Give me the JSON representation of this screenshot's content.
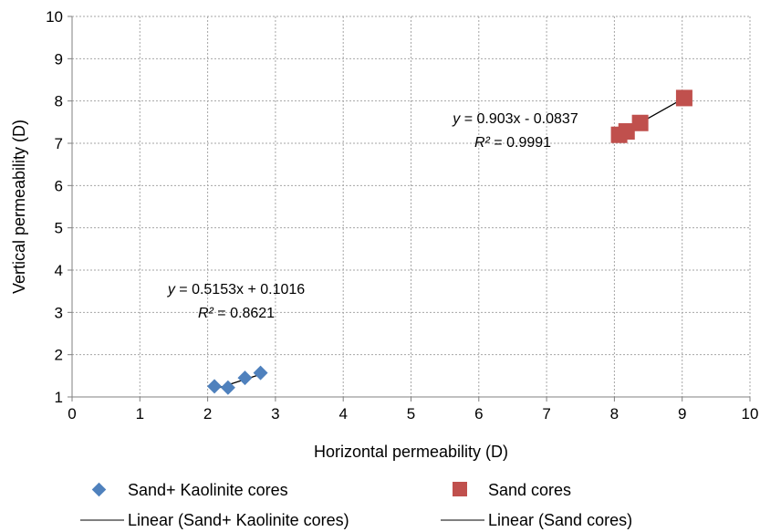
{
  "chart_data": {
    "type": "scatter",
    "title": "",
    "xlabel": "Horizontal permeability (D)",
    "ylabel": "Vertical permeability (D)",
    "xlim": [
      0,
      10
    ],
    "ylim": [
      1,
      10
    ],
    "x_ticks": [
      0,
      1,
      2,
      3,
      4,
      5,
      6,
      7,
      8,
      9,
      10
    ],
    "y_ticks": [
      1,
      2,
      3,
      4,
      5,
      6,
      7,
      8,
      9,
      10
    ],
    "grid": true,
    "legend_position": "bottom",
    "series": [
      {
        "name": "Sand+ Kaolinite cores",
        "marker": "diamond",
        "color": "#4F81BD",
        "x": [
          2.1,
          2.3,
          2.55,
          2.78
        ],
        "y": [
          1.25,
          1.22,
          1.45,
          1.57
        ],
        "trendline": {
          "name": "Linear (Sand+ Kaolinite cores)",
          "slope": 0.5153,
          "intercept": 0.1016,
          "x_range": [
            2.1,
            2.78
          ],
          "equation_var": "y",
          "equation_rest": " = 0.5153x + 0.1016",
          "r2_label": "R²",
          "r2_rest": " = 0.8621"
        }
      },
      {
        "name": "Sand cores",
        "marker": "square",
        "color": "#C0504D",
        "x": [
          8.07,
          8.18,
          8.38,
          9.03
        ],
        "y": [
          7.2,
          7.28,
          7.48,
          8.07
        ],
        "trendline": {
          "name": "Linear (Sand cores)",
          "slope": 0.903,
          "intercept": -0.0837,
          "x_range": [
            8.07,
            9.03
          ],
          "equation_var": "y",
          "equation_rest": " = 0.903x - 0.0837",
          "r2_label": "R²",
          "r2_rest": " = 0.9991"
        }
      }
    ]
  }
}
